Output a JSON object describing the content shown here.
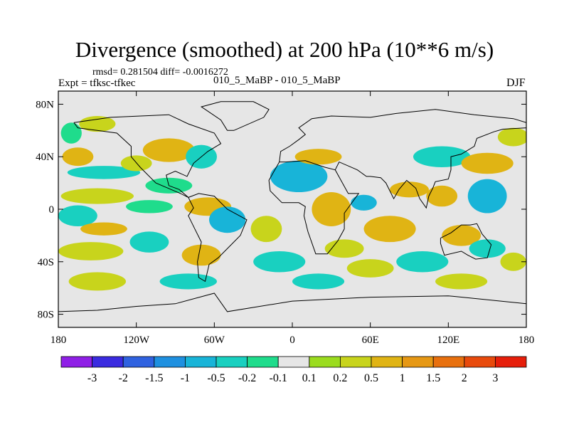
{
  "title": "Divergence (smoothed) at 200 hPa (10**6 m/s)",
  "stats": "rmsd= 0.281504 diff= -0.0016272",
  "expt": "Expt = tfksc-tfkec",
  "experiments": "010_5_MaBP - 010_5_MaBP",
  "season": "DJF",
  "chart_data": {
    "type": "heatmap",
    "field": "Divergence difference (smoothed), 200 hPa",
    "units": "10**6 m/s",
    "x_range": [
      -180,
      180
    ],
    "y_range": [
      -90,
      90
    ],
    "x_ticks": [
      {
        "value": -180,
        "label": "180"
      },
      {
        "value": -120,
        "label": "120W"
      },
      {
        "value": -60,
        "label": "60W"
      },
      {
        "value": 0,
        "label": "0"
      },
      {
        "value": 60,
        "label": "60E"
      },
      {
        "value": 120,
        "label": "120E"
      },
      {
        "value": 180,
        "label": "180"
      }
    ],
    "y_ticks": [
      {
        "value": 80,
        "label": "80N"
      },
      {
        "value": 40,
        "label": "40N"
      },
      {
        "value": 0,
        "label": "0"
      },
      {
        "value": -40,
        "label": "40S"
      },
      {
        "value": -80,
        "label": "80S"
      }
    ],
    "colorbar": {
      "labels": [
        "-3",
        "-2",
        "-1.5",
        "-1",
        "-0.5",
        "-0.2",
        "-0.1",
        "0.1",
        "0.2",
        "0.5",
        "1",
        "1.5",
        "2",
        "3"
      ],
      "colors": [
        "#8f1fe6",
        "#3a2be0",
        "#2f62e0",
        "#1e90e0",
        "#18b4d8",
        "#19d0c0",
        "#1fdc8c",
        "#e6e6e6",
        "#9bdc1e",
        "#c8d41c",
        "#e0b414",
        "#e69814",
        "#e8700e",
        "#e84a0c",
        "#e61e0a"
      ]
    },
    "blobs": [
      {
        "lon": -170,
        "lat": 58,
        "rx": 8,
        "ry": 8,
        "v": -0.15
      },
      {
        "lon": -150,
        "lat": 65,
        "rx": 14,
        "ry": 6,
        "v": 0.2
      },
      {
        "lon": -165,
        "lat": 40,
        "rx": 12,
        "ry": 7,
        "v": 0.7
      },
      {
        "lon": -145,
        "lat": 28,
        "rx": 28,
        "ry": 5,
        "v": -0.5
      },
      {
        "lon": -120,
        "lat": 35,
        "rx": 12,
        "ry": 6,
        "v": 0.4
      },
      {
        "lon": -95,
        "lat": 45,
        "rx": 20,
        "ry": 9,
        "v": 0.7
      },
      {
        "lon": -70,
        "lat": 40,
        "rx": 12,
        "ry": 9,
        "v": -0.3
      },
      {
        "lon": -95,
        "lat": 18,
        "rx": 18,
        "ry": 6,
        "v": -0.2
      },
      {
        "lon": -150,
        "lat": 10,
        "rx": 28,
        "ry": 6,
        "v": 0.3
      },
      {
        "lon": -165,
        "lat": -5,
        "rx": 15,
        "ry": 8,
        "v": -0.5
      },
      {
        "lon": -110,
        "lat": 2,
        "rx": 18,
        "ry": 5,
        "v": -0.2
      },
      {
        "lon": -65,
        "lat": 2,
        "rx": 18,
        "ry": 7,
        "v": 0.7
      },
      {
        "lon": -50,
        "lat": -8,
        "rx": 14,
        "ry": 10,
        "v": -0.7
      },
      {
        "lon": -20,
        "lat": -15,
        "rx": 12,
        "ry": 10,
        "v": 0.4
      },
      {
        "lon": -145,
        "lat": -15,
        "rx": 18,
        "ry": 5,
        "v": 0.6
      },
      {
        "lon": -155,
        "lat": -32,
        "rx": 25,
        "ry": 7,
        "v": 0.4
      },
      {
        "lon": -110,
        "lat": -25,
        "rx": 15,
        "ry": 8,
        "v": -0.5
      },
      {
        "lon": -70,
        "lat": -35,
        "rx": 15,
        "ry": 8,
        "v": 0.5
      },
      {
        "lon": -10,
        "lat": -40,
        "rx": 20,
        "ry": 8,
        "v": -0.4
      },
      {
        "lon": -80,
        "lat": -55,
        "rx": 22,
        "ry": 6,
        "v": -0.3
      },
      {
        "lon": -150,
        "lat": -55,
        "rx": 22,
        "ry": 7,
        "v": 0.2
      },
      {
        "lon": 5,
        "lat": 25,
        "rx": 22,
        "ry": 12,
        "v": -0.6
      },
      {
        "lon": 20,
        "lat": 40,
        "rx": 18,
        "ry": 6,
        "v": 0.6
      },
      {
        "lon": 30,
        "lat": 0,
        "rx": 15,
        "ry": 13,
        "v": 0.8
      },
      {
        "lon": 55,
        "lat": 5,
        "rx": 10,
        "ry": 6,
        "v": -0.8
      },
      {
        "lon": 75,
        "lat": -15,
        "rx": 20,
        "ry": 10,
        "v": 0.5
      },
      {
        "lon": 40,
        "lat": -30,
        "rx": 15,
        "ry": 7,
        "v": 0.4
      },
      {
        "lon": 90,
        "lat": 15,
        "rx": 15,
        "ry": 6,
        "v": 0.6
      },
      {
        "lon": 115,
        "lat": 10,
        "rx": 12,
        "ry": 8,
        "v": 0.9
      },
      {
        "lon": 150,
        "lat": 10,
        "rx": 15,
        "ry": 13,
        "v": -0.7
      },
      {
        "lon": 115,
        "lat": 40,
        "rx": 22,
        "ry": 8,
        "v": -0.5
      },
      {
        "lon": 150,
        "lat": 35,
        "rx": 20,
        "ry": 8,
        "v": 0.5
      },
      {
        "lon": 170,
        "lat": 55,
        "rx": 12,
        "ry": 7,
        "v": 0.2
      },
      {
        "lon": 130,
        "lat": -20,
        "rx": 15,
        "ry": 8,
        "v": 0.6
      },
      {
        "lon": 150,
        "lat": -30,
        "rx": 14,
        "ry": 7,
        "v": -0.5
      },
      {
        "lon": 100,
        "lat": -40,
        "rx": 20,
        "ry": 8,
        "v": -0.3
      },
      {
        "lon": 60,
        "lat": -45,
        "rx": 18,
        "ry": 7,
        "v": 0.3
      },
      {
        "lon": 20,
        "lat": -55,
        "rx": 20,
        "ry": 6,
        "v": -0.3
      },
      {
        "lon": 130,
        "lat": -55,
        "rx": 20,
        "ry": 6,
        "v": 0.2
      },
      {
        "lon": 170,
        "lat": -40,
        "rx": 10,
        "ry": 7,
        "v": 0.4
      }
    ]
  }
}
